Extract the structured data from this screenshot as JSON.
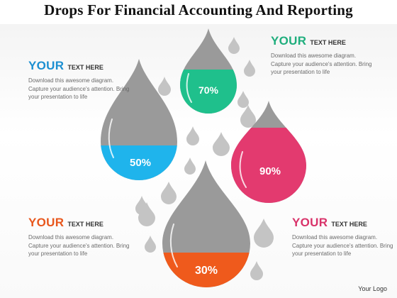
{
  "title": "Drops For Financial Accounting And Reporting",
  "colors": {
    "drop_gray": "#9a9a9a",
    "small_drop_gray": "#c4c4c4",
    "blue": "#1fb4ec",
    "green": "#1fc08c",
    "pink": "#e33a6f",
    "orange": "#ef5a1c",
    "heading_blue": "#1c8fd1",
    "heading_green": "#1fae7d",
    "heading_orange": "#e8571d",
    "heading_pink": "#d9336a"
  },
  "drops": [
    {
      "id": "blue",
      "percent": "50%",
      "fill_fraction": 0.5
    },
    {
      "id": "green",
      "percent": "70%",
      "fill_fraction": 0.7
    },
    {
      "id": "pink",
      "percent": "90%",
      "fill_fraction": 0.9
    },
    {
      "id": "orange",
      "percent": "30%",
      "fill_fraction": 0.3
    }
  ],
  "text_blocks": {
    "top_left": {
      "heading": "YOUR",
      "subheading": "TEXT HERE",
      "body": "Download this awesome diagram. Capture your audience's attention. Bring your presentation to life"
    },
    "top_right": {
      "heading": "YOUR",
      "subheading": "TEXT HERE",
      "body": "Download this awesome diagram. Capture your audience's attention. Bring your presentation to life"
    },
    "bottom_left": {
      "heading": "YOUR",
      "subheading": "TEXT HERE",
      "body": "Download this awesome diagram. Capture your audience's attention. Bring your presentation to life"
    },
    "bottom_right": {
      "heading": "YOUR",
      "subheading": "TEXT HERE",
      "body": "Download this awesome diagram. Capture your audience's attention. Bring your presentation to life"
    }
  },
  "logo": "Your Logo"
}
